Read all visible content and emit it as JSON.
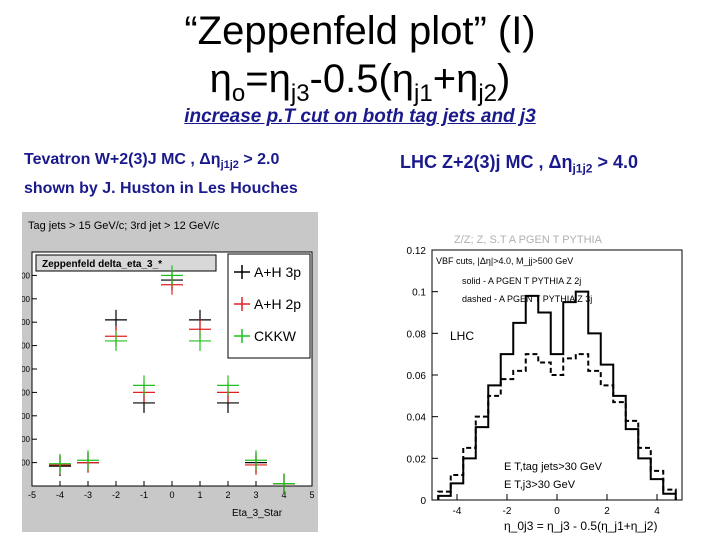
{
  "slide": {
    "title_line1": "“Zeppenfeld plot” (I)",
    "title_line2": {
      "eta": "η",
      "o": "o",
      "eq": "=",
      "eta2": "η",
      "j3": "j3",
      "minus": "-0.5(",
      "eta3": "η",
      "j1": "j1",
      "plus": "+",
      "eta4": "η",
      "j2": "j2",
      "close": ")"
    },
    "subtitle": "increase p.T cut on both tag jets and j3",
    "left_caption": {
      "line1_pre": "Tevatron W+2(3)J MC , Δη",
      "line1_sub": "j1j2",
      "line1_post": " > 2.0",
      "line2": "shown by J. Huston in Les Houches"
    },
    "right_caption": {
      "pre": "LHC Z+2(3)j MC , Δη",
      "sub": "j1j2",
      "post": " > 4.0"
    }
  },
  "left_plot": {
    "header": "Tag jets > 15 GeV/c; 3rd jet > 12 GeV/c",
    "hist_title": "Zeppenfeld delta_eta_3_*",
    "xlabel": "Eta_3_Star",
    "x_ticks": [
      "-5",
      "-4",
      "-3",
      "-2",
      "-1",
      "0",
      "1",
      "2",
      "3",
      "4",
      "5"
    ],
    "y_ticks": [
      "100",
      "200",
      "300",
      "400",
      "500",
      "600",
      "700",
      "800",
      "900"
    ],
    "legend": [
      {
        "label": "A+H 3p",
        "color": "#000000"
      },
      {
        "label": "A+H 2p",
        "color": "#e02020"
      },
      {
        "label": "CKKW",
        "color": "#20c020"
      }
    ],
    "chart_data": {
      "type": "scatter",
      "x": [
        -4,
        -3,
        -2,
        -1,
        0,
        1,
        2,
        3,
        4
      ],
      "series": [
        {
          "name": "A+H 3p",
          "values": [
            85,
            100,
            710,
            355,
            880,
            710,
            355,
            100,
            10
          ]
        },
        {
          "name": "A+H 2p",
          "values": [
            90,
            100,
            640,
            400,
            860,
            670,
            400,
            90,
            10
          ]
        },
        {
          "name": "CKKW",
          "values": [
            95,
            110,
            620,
            430,
            900,
            620,
            430,
            110,
            10
          ]
        }
      ],
      "xlim": [
        -5,
        5
      ],
      "ylim": [
        0,
        1000
      ]
    }
  },
  "right_plot": {
    "header": "Z/Z; Z, S.T A PGEN T PYTHIA",
    "annotations": {
      "cuts": "VBF cuts, |Δη|>4.0, M_jj>500 GeV",
      "solid": "solid - A PGEN T PYTHIA Z 2j",
      "dashed": "dashed - A PGEN T PYTHIA Z 3j",
      "lhc": "LHC",
      "etag": "E T,tag jets>30 GeV",
      "ej3": "E T,j3>30 GeV"
    },
    "xlabel": "η_0j3 = η_j3 - 0.5(η_j1+η_j2)",
    "x_ticks": [
      "-4",
      "-2",
      "0",
      "2",
      "4"
    ],
    "y_ticks": [
      "0",
      "0.02",
      "0.04",
      "0.06",
      "0.08",
      "0.1",
      "0.12"
    ],
    "chart_data": {
      "type": "line",
      "x": [
        -4.5,
        -4,
        -3.5,
        -3,
        -2.5,
        -2,
        -1.5,
        -1,
        -0.5,
        0,
        0.5,
        1,
        1.5,
        2,
        2.5,
        3,
        3.5,
        4,
        4.5
      ],
      "series": [
        {
          "name": "solid - A PGEN T PYTHIA Z 2j",
          "values": [
            0.002,
            0.008,
            0.02,
            0.035,
            0.055,
            0.07,
            0.085,
            0.098,
            0.09,
            0.07,
            0.095,
            0.1,
            0.08,
            0.065,
            0.05,
            0.034,
            0.02,
            0.01,
            0.003
          ]
        },
        {
          "name": "dashed - A PGEN T PYTHIA Z 3j",
          "values": [
            0.004,
            0.012,
            0.025,
            0.04,
            0.05,
            0.058,
            0.062,
            0.07,
            0.066,
            0.06,
            0.068,
            0.07,
            0.062,
            0.055,
            0.047,
            0.038,
            0.025,
            0.014,
            0.005
          ]
        }
      ],
      "xlim": [
        -5,
        5
      ],
      "ylim": [
        0,
        0.12
      ]
    }
  }
}
